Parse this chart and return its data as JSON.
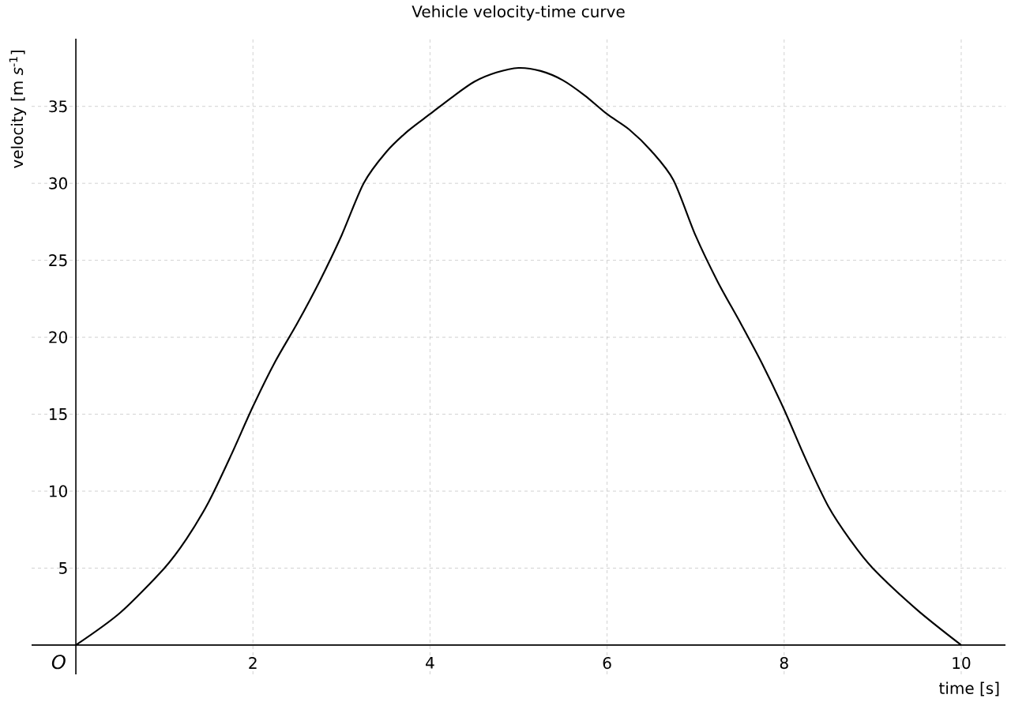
{
  "chart_data": {
    "type": "line",
    "title": "Vehicle velocity-time curve",
    "xlabel": "time [s]",
    "ylabel": "velocity [m *s*$^{-1}$]",
    "x": [
      0,
      0.5,
      1,
      1.25,
      1.5,
      1.75,
      2,
      2.25,
      2.5,
      2.75,
      3,
      3.25,
      3.5,
      3.75,
      4,
      4.25,
      4.5,
      4.75,
      5,
      5.25,
      5.5,
      5.75,
      6,
      6.25,
      6.5,
      6.75,
      7,
      7.25,
      7.5,
      7.75,
      8,
      8.25,
      8.5,
      8.75,
      9,
      9.5,
      10
    ],
    "series": [
      {
        "color": "#000000",
        "values": [
          0,
          2.1,
          5.0,
          6.9,
          9.3,
          12.3,
          15.5,
          18.4,
          20.9,
          23.6,
          26.6,
          30.0,
          32.0,
          33.4,
          34.5,
          35.6,
          36.6,
          37.2,
          37.5,
          37.3,
          36.7,
          35.7,
          34.5,
          33.5,
          32.1,
          30.2,
          26.6,
          23.6,
          21.0,
          18.3,
          15.3,
          12.0,
          9.0,
          6.8,
          5.0,
          2.3,
          0
        ]
      }
    ],
    "xlim": [
      -0.5,
      10.5
    ],
    "ylim": [
      -1.9,
      39.4
    ],
    "xticks": [
      2,
      4,
      6,
      8,
      10
    ],
    "yticks": [
      5,
      10,
      15,
      20,
      25,
      30,
      35
    ],
    "annotations": [
      "O"
    ],
    "grid": true,
    "marker": "none",
    "line_style": "solid"
  }
}
